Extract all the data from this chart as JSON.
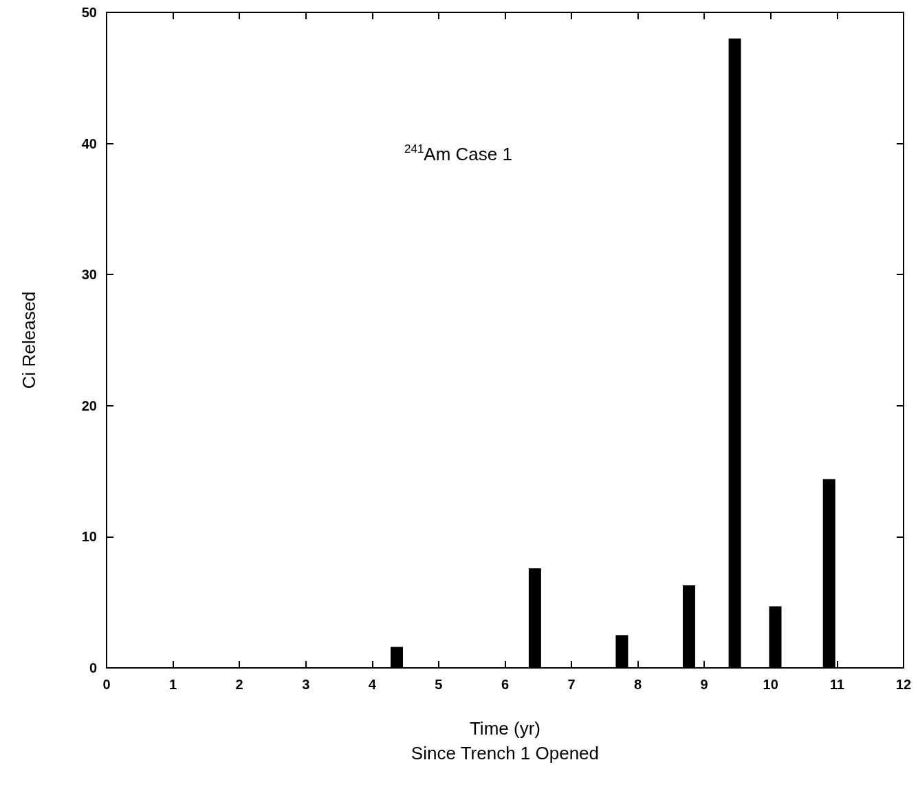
{
  "chart_data": {
    "type": "bar",
    "xlabel": "Time (yr)\nSince Trench 1 Opened",
    "ylabel": "Ci Released",
    "annotations": [
      "$^{241}$Am Case 1"
    ],
    "x": [
      4.37,
      6.45,
      7.76,
      8.77,
      9.46,
      10.07,
      10.88
    ],
    "values": [
      1.6,
      7.6,
      2.5,
      6.3,
      48,
      4.7,
      14.4
    ],
    "color": "#000000",
    "xlim": [
      0,
      12
    ],
    "xticks": [
      0,
      1,
      2,
      3,
      4,
      5,
      6,
      7,
      8,
      9,
      10,
      11,
      12
    ],
    "ylim": [
      0,
      50
    ],
    "yticks": [
      0,
      10,
      20,
      30,
      40,
      50
    ],
    "grid": false
  }
}
